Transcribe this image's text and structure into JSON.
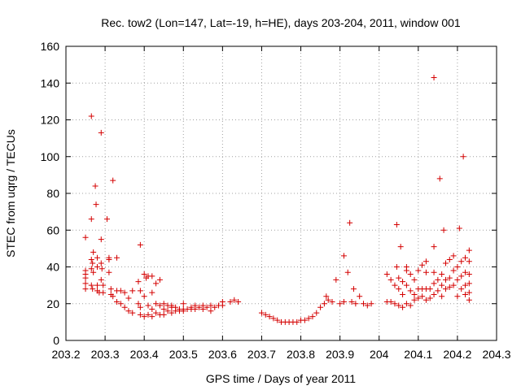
{
  "chart_data": {
    "type": "scatter",
    "title": "Rec. tow2 (Lon=147, Lat=-19, h=HE), days 203-204, 2011, window 001",
    "xlabel": "GPS time / Days of year 2011",
    "ylabel": "STEC from uqrg / TECUs",
    "xlim": [
      203.2,
      204.3
    ],
    "ylim": [
      0,
      160
    ],
    "x_ticks": [
      "203.2",
      "203.3",
      "203.4",
      "203.5",
      "203.6",
      "203.7",
      "203.8",
      "203.9",
      "204",
      "204.1",
      "204.2",
      "204.3"
    ],
    "x_tick_values": [
      203.2,
      203.3,
      203.4,
      203.5,
      203.6,
      203.7,
      203.8,
      203.9,
      204.0,
      204.1,
      204.2,
      204.3
    ],
    "y_ticks": [
      "0",
      "20",
      "40",
      "60",
      "80",
      "100",
      "120",
      "140",
      "160"
    ],
    "y_tick_values": [
      0,
      20,
      40,
      60,
      80,
      100,
      120,
      140,
      160
    ],
    "grid": true,
    "marker": "+",
    "color": "#d40000",
    "series": [
      {
        "name": "STEC",
        "points": [
          [
            203.25,
            56
          ],
          [
            203.25,
            38
          ],
          [
            203.25,
            36
          ],
          [
            203.25,
            34
          ],
          [
            203.25,
            31
          ],
          [
            203.25,
            28
          ],
          [
            203.265,
            122
          ],
          [
            203.265,
            66
          ],
          [
            203.27,
            48
          ],
          [
            203.265,
            44
          ],
          [
            203.268,
            42
          ],
          [
            203.265,
            39
          ],
          [
            203.27,
            37
          ],
          [
            203.265,
            30
          ],
          [
            203.268,
            28
          ],
          [
            203.275,
            84
          ],
          [
            203.277,
            74
          ],
          [
            203.28,
            45
          ],
          [
            203.28,
            40
          ],
          [
            203.28,
            30
          ],
          [
            203.28,
            27
          ],
          [
            203.285,
            26
          ],
          [
            203.29,
            113
          ],
          [
            203.29,
            55
          ],
          [
            203.29,
            42
          ],
          [
            203.292,
            39
          ],
          [
            203.29,
            33
          ],
          [
            203.295,
            30
          ],
          [
            203.295,
            26
          ],
          [
            203.305,
            66
          ],
          [
            203.31,
            45
          ],
          [
            203.31,
            44
          ],
          [
            203.31,
            37
          ],
          [
            203.315,
            28
          ],
          [
            203.315,
            25
          ],
          [
            203.32,
            87
          ],
          [
            203.32,
            24
          ],
          [
            203.33,
            45
          ],
          [
            203.33,
            27
          ],
          [
            203.33,
            21
          ],
          [
            203.34,
            27
          ],
          [
            203.34,
            20
          ],
          [
            203.35,
            26
          ],
          [
            203.35,
            18
          ],
          [
            203.36,
            23
          ],
          [
            203.36,
            16
          ],
          [
            203.37,
            27
          ],
          [
            203.37,
            15
          ],
          [
            203.385,
            32
          ],
          [
            203.385,
            20
          ],
          [
            203.39,
            52
          ],
          [
            203.39,
            27
          ],
          [
            203.39,
            18
          ],
          [
            203.39,
            14
          ],
          [
            203.4,
            36
          ],
          [
            203.4,
            24
          ],
          [
            203.4,
            13
          ],
          [
            203.405,
            34
          ],
          [
            203.41,
            35
          ],
          [
            203.41,
            19
          ],
          [
            203.41,
            14
          ],
          [
            203.42,
            35
          ],
          [
            203.42,
            26
          ],
          [
            203.42,
            17
          ],
          [
            203.42,
            13
          ],
          [
            203.43,
            31
          ],
          [
            203.43,
            20
          ],
          [
            203.43,
            15
          ],
          [
            203.44,
            33
          ],
          [
            203.44,
            19
          ],
          [
            203.44,
            14
          ],
          [
            203.45,
            20
          ],
          [
            203.45,
            17
          ],
          [
            203.45,
            14
          ],
          [
            203.46,
            19
          ],
          [
            203.46,
            16
          ],
          [
            203.47,
            19
          ],
          [
            203.47,
            18
          ],
          [
            203.47,
            15
          ],
          [
            203.48,
            18
          ],
          [
            203.48,
            16
          ],
          [
            203.49,
            17
          ],
          [
            203.49,
            16
          ],
          [
            203.5,
            20
          ],
          [
            203.5,
            17
          ],
          [
            203.5,
            16
          ],
          [
            203.51,
            17
          ],
          [
            203.52,
            17
          ],
          [
            203.52,
            18
          ],
          [
            203.53,
            19
          ],
          [
            203.53,
            17
          ],
          [
            203.54,
            18
          ],
          [
            203.55,
            19
          ],
          [
            203.55,
            17
          ],
          [
            203.56,
            18
          ],
          [
            203.57,
            16
          ],
          [
            203.57,
            19
          ],
          [
            203.58,
            18
          ],
          [
            203.59,
            19
          ],
          [
            203.6,
            21
          ],
          [
            203.6,
            19
          ],
          [
            203.62,
            21
          ],
          [
            203.63,
            22
          ],
          [
            203.64,
            21
          ],
          [
            203.7,
            15
          ],
          [
            203.71,
            14
          ],
          [
            203.72,
            13
          ],
          [
            203.73,
            12
          ],
          [
            203.74,
            11
          ],
          [
            203.75,
            10
          ],
          [
            203.76,
            10
          ],
          [
            203.77,
            10
          ],
          [
            203.78,
            10
          ],
          [
            203.79,
            10
          ],
          [
            203.8,
            11
          ],
          [
            203.81,
            11
          ],
          [
            203.82,
            12
          ],
          [
            203.83,
            13
          ],
          [
            203.84,
            15
          ],
          [
            203.85,
            18
          ],
          [
            203.86,
            20
          ],
          [
            203.865,
            24
          ],
          [
            203.87,
            22
          ],
          [
            203.88,
            21
          ],
          [
            203.89,
            33
          ],
          [
            203.9,
            20
          ],
          [
            203.91,
            46
          ],
          [
            203.91,
            21
          ],
          [
            203.92,
            37
          ],
          [
            203.925,
            64
          ],
          [
            203.93,
            21
          ],
          [
            203.935,
            28
          ],
          [
            203.94,
            20
          ],
          [
            203.95,
            24
          ],
          [
            203.96,
            20
          ],
          [
            203.97,
            19
          ],
          [
            203.98,
            20
          ],
          [
            204.02,
            36
          ],
          [
            204.02,
            21
          ],
          [
            204.03,
            33
          ],
          [
            204.03,
            21
          ],
          [
            204.04,
            30
          ],
          [
            204.04,
            20
          ],
          [
            204.045,
            63
          ],
          [
            204.045,
            40
          ],
          [
            204.05,
            34
          ],
          [
            204.05,
            28
          ],
          [
            204.05,
            19
          ],
          [
            204.055,
            51
          ],
          [
            204.06,
            32
          ],
          [
            204.06,
            25
          ],
          [
            204.06,
            18
          ],
          [
            204.07,
            40
          ],
          [
            204.07,
            38
          ],
          [
            204.07,
            30
          ],
          [
            204.07,
            20
          ],
          [
            204.08,
            36
          ],
          [
            204.08,
            27
          ],
          [
            204.08,
            19
          ],
          [
            204.09,
            33
          ],
          [
            204.09,
            25
          ],
          [
            204.09,
            22
          ],
          [
            204.1,
            38
          ],
          [
            204.1,
            28
          ],
          [
            204.1,
            23
          ],
          [
            204.11,
            41
          ],
          [
            204.11,
            28
          ],
          [
            204.11,
            24
          ],
          [
            204.12,
            43
          ],
          [
            204.12,
            37
          ],
          [
            204.12,
            28
          ],
          [
            204.12,
            22
          ],
          [
            204.13,
            28
          ],
          [
            204.13,
            23
          ],
          [
            204.14,
            143
          ],
          [
            204.14,
            51
          ],
          [
            204.14,
            37
          ],
          [
            204.14,
            31
          ],
          [
            204.14,
            25
          ],
          [
            204.15,
            33
          ],
          [
            204.15,
            27
          ],
          [
            204.155,
            88
          ],
          [
            204.16,
            36
          ],
          [
            204.16,
            30
          ],
          [
            204.16,
            24
          ],
          [
            204.165,
            60
          ],
          [
            204.17,
            42
          ],
          [
            204.17,
            33
          ],
          [
            204.17,
            28
          ],
          [
            204.18,
            44
          ],
          [
            204.18,
            34
          ],
          [
            204.18,
            29
          ],
          [
            204.19,
            46
          ],
          [
            204.19,
            38
          ],
          [
            204.19,
            30
          ],
          [
            204.2,
            40
          ],
          [
            204.2,
            33
          ],
          [
            204.2,
            24
          ],
          [
            204.205,
            61
          ],
          [
            204.21,
            43
          ],
          [
            204.21,
            35
          ],
          [
            204.21,
            28
          ],
          [
            204.215,
            100
          ],
          [
            204.22,
            45
          ],
          [
            204.22,
            37
          ],
          [
            204.22,
            30
          ],
          [
            204.22,
            25
          ],
          [
            204.23,
            49
          ],
          [
            204.23,
            43
          ],
          [
            204.23,
            36
          ],
          [
            204.23,
            31
          ],
          [
            204.23,
            26
          ],
          [
            204.23,
            22
          ]
        ]
      }
    ]
  }
}
